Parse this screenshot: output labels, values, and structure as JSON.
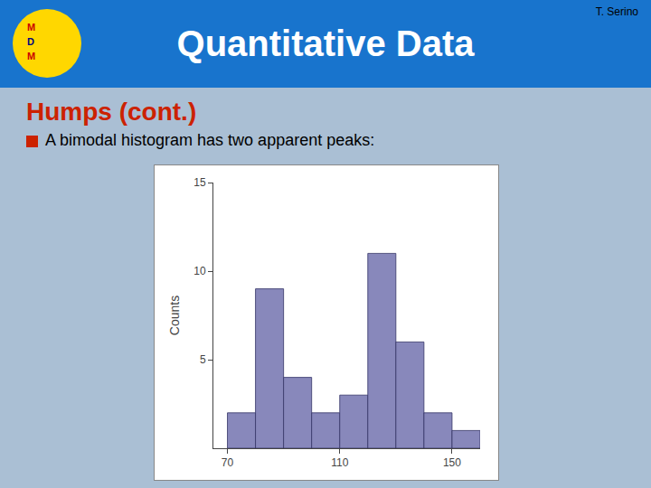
{
  "chart_data": {
    "type": "histogram",
    "title": "Quantitative Data",
    "subtitle": "Humps (cont.)",
    "annotations": [
      "T. Serino",
      "A bimodal histogram has two apparent peaks:",
      "M",
      "D",
      "M"
    ],
    "bins": [
      70,
      80,
      90,
      100,
      110,
      120,
      130,
      140,
      150,
      160
    ],
    "values": [
      2,
      9,
      4,
      2,
      3,
      11,
      6,
      2,
      1
    ],
    "color": "#8888BB",
    "y_label": "Counts",
    "xlim": [
      65,
      160
    ],
    "xticks": [
      70,
      110,
      150
    ],
    "ylim": [
      0,
      15
    ],
    "yticks": [
      5,
      10,
      15
    ],
    "grid": false
  }
}
